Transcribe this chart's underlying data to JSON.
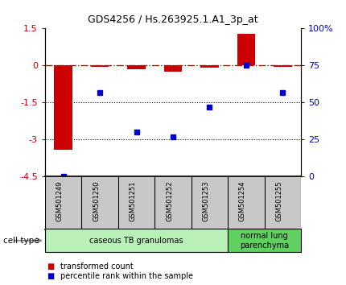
{
  "title": "GDS4256 / Hs.263925.1.A1_3p_at",
  "samples": [
    "GSM501249",
    "GSM501250",
    "GSM501251",
    "GSM501252",
    "GSM501253",
    "GSM501254",
    "GSM501255"
  ],
  "red_values": [
    -3.4,
    -0.05,
    -0.15,
    -0.25,
    -0.1,
    1.3,
    -0.05
  ],
  "blue_values": [
    0,
    57,
    30,
    27,
    47,
    75,
    57
  ],
  "ylim_left": [
    -4.5,
    1.5
  ],
  "ylim_right": [
    0,
    100
  ],
  "yticks_left": [
    1.5,
    0,
    -1.5,
    -3,
    -4.5
  ],
  "yticks_right": [
    100,
    75,
    50,
    25,
    0
  ],
  "hlines": [
    -1.5,
    -3.0
  ],
  "cell_type_groups": [
    {
      "label": "caseous TB granulomas",
      "span": [
        0,
        4
      ],
      "color": "#b8f0b8"
    },
    {
      "label": "normal lung\nparenchyma",
      "span": [
        5,
        6
      ],
      "color": "#60d060"
    }
  ],
  "bar_color": "#cc0000",
  "dot_color": "#0000cc",
  "bg_color": "#ffffff",
  "tick_bg_color": "#c8c8c8",
  "legend_red_label": "transformed count",
  "legend_blue_label": "percentile rank within the sample",
  "cell_type_label": "cell type",
  "bar_width": 0.5
}
